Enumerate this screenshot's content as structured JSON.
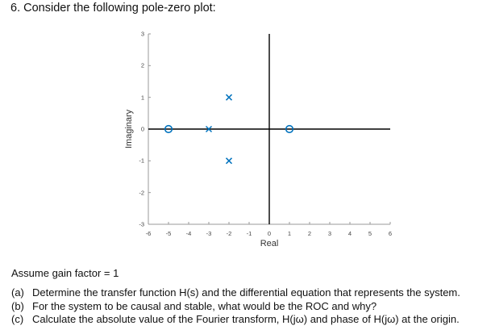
{
  "question": {
    "title": "6. Consider the following pole-zero plot:",
    "gain_text": "Assume gain factor = 1",
    "parts": [
      {
        "label": "(a)",
        "text": "Determine the transfer function H(s) and the differential equation that represents the system."
      },
      {
        "label": "(b)",
        "text": "For the system to be causal and stable, what would be the ROC and why?"
      },
      {
        "label": "(c)",
        "text": "Calculate the absolute value of the Fourier transform, H(jω) and phase of H(jω) at the origin."
      }
    ]
  },
  "chart_data": {
    "type": "scatter",
    "title": "",
    "xlabel": "Real",
    "ylabel": "Imaginary",
    "xlim": [
      -6,
      6
    ],
    "ylim": [
      -3,
      3
    ],
    "xticks": [
      "-6",
      "-5",
      "-4",
      "-3",
      "-2",
      "-1",
      "0",
      "1",
      "2",
      "3",
      "4",
      "5",
      "6"
    ],
    "yticks": [
      "3",
      "2",
      "1",
      "0",
      "-1",
      "-2",
      "-3"
    ],
    "grid": false,
    "marker_color": "#0072BD",
    "series": [
      {
        "name": "zeros",
        "marker": "o",
        "points": [
          [
            -5,
            0
          ],
          [
            1,
            0
          ]
        ]
      },
      {
        "name": "poles",
        "marker": "x",
        "points": [
          [
            -3,
            0
          ],
          [
            -2,
            1
          ],
          [
            -2,
            -1
          ]
        ]
      }
    ]
  }
}
